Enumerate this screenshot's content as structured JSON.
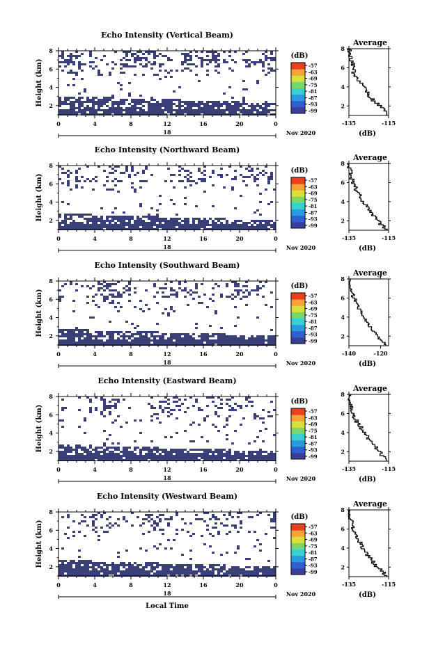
{
  "shared": {
    "y_label": "Height (km)",
    "x_ticks": [
      "0",
      "4",
      "8",
      "12",
      "16",
      "20",
      "0"
    ],
    "date_day": "18",
    "date_month_year": "Nov 2020",
    "x_bottom_label": "Local Time",
    "unit_label": "(dB)",
    "colorbar_ticks": [
      "-57",
      "-63",
      "-69",
      "-75",
      "-81",
      "-87",
      "-93",
      "-99"
    ],
    "avg_title": "Average",
    "avg_unit": "(dB)",
    "y_ticks": [
      "2",
      "4",
      "6",
      "8"
    ],
    "avg_y_ticks": [
      "2",
      "4",
      "6",
      "8"
    ]
  },
  "chart_data": [
    {
      "type": "heatmap",
      "title": "Echo Intensity (Vertical Beam)",
      "xlabel": "",
      "ylabel": "Height (km)",
      "xlim": [
        0,
        24
      ],
      "ylim": [
        1,
        8
      ],
      "colorbar": {
        "label": "(dB)",
        "range": [
          -99,
          -57
        ]
      },
      "average_profile": {
        "title": "Average",
        "xlabel": "(dB)",
        "xticks": [
          "-135",
          "-115"
        ],
        "xlim": [
          -135,
          -115
        ],
        "height_km": [
          1,
          2,
          3,
          4,
          5,
          6,
          7,
          8
        ],
        "db": [
          -115,
          -120,
          -125,
          -128,
          -132,
          -133,
          -134,
          -135
        ]
      }
    },
    {
      "type": "heatmap",
      "title": "Echo Intensity (Northward Beam)",
      "xlabel": "",
      "ylabel": "Height (km)",
      "xlim": [
        0,
        24
      ],
      "ylim": [
        1,
        8
      ],
      "colorbar": {
        "label": "(dB)",
        "range": [
          -99,
          -57
        ]
      },
      "average_profile": {
        "title": "Average",
        "xlabel": "(dB)",
        "xticks": [
          "-135",
          "-115"
        ],
        "xlim": [
          -135,
          -115
        ],
        "height_km": [
          1,
          2,
          3,
          4,
          5,
          6,
          7,
          8
        ],
        "db": [
          -116,
          -121,
          -124,
          -128,
          -131,
          -133,
          -134,
          -135
        ]
      }
    },
    {
      "type": "heatmap",
      "title": "Echo Intensity (Southward Beam)",
      "xlabel": "",
      "ylabel": "Height (km)",
      "xlim": [
        0,
        24
      ],
      "ylim": [
        1,
        8
      ],
      "colorbar": {
        "label": "(dB)",
        "range": [
          -99,
          -57
        ]
      },
      "average_profile": {
        "title": "Average",
        "xlabel": "(dB)",
        "xticks": [
          "-140",
          "-120"
        ],
        "xlim": [
          -140,
          -115
        ],
        "height_km": [
          1,
          2,
          3,
          4,
          5,
          6,
          7,
          8
        ],
        "db": [
          -117,
          -122,
          -127,
          -131,
          -134,
          -137,
          -139,
          -140
        ]
      }
    },
    {
      "type": "heatmap",
      "title": "Echo Intensity (Eastward Beam)",
      "xlabel": "",
      "ylabel": "Height (km)",
      "xlim": [
        0,
        24
      ],
      "ylim": [
        1,
        8
      ],
      "colorbar": {
        "label": "(dB)",
        "range": [
          -99,
          -57
        ]
      },
      "average_profile": {
        "title": "Average",
        "xlabel": "(dB)",
        "xticks": [
          "-135",
          "-115"
        ],
        "xlim": [
          -135,
          -115
        ],
        "height_km": [
          1,
          2,
          3,
          4,
          5,
          6,
          7,
          8
        ],
        "db": [
          -116,
          -120,
          -124,
          -127,
          -131,
          -133,
          -134,
          -135
        ]
      }
    },
    {
      "type": "heatmap",
      "title": "Echo Intensity (Westward Beam)",
      "xlabel": "Local Time",
      "ylabel": "Height (km)",
      "xlim": [
        0,
        24
      ],
      "ylim": [
        1,
        8
      ],
      "colorbar": {
        "label": "(dB)",
        "range": [
          -99,
          -57
        ]
      },
      "average_profile": {
        "title": "Average",
        "xlabel": "(dB)",
        "xticks": [
          "-135",
          "-115"
        ],
        "xlim": [
          -135,
          -115
        ],
        "height_km": [
          1,
          2,
          3,
          4,
          5,
          6,
          7,
          8
        ],
        "db": [
          -116,
          -121,
          -125,
          -128,
          -131,
          -133,
          -134,
          -135
        ]
      }
    }
  ],
  "colors": {
    "echo_fill": "#3a3f78",
    "background": "#ffffff",
    "colorbar": [
      "#3a3f9a",
      "#2f5fd0",
      "#2a9bdf",
      "#38d0d0",
      "#7ad86a",
      "#d8e03c",
      "#f8a238",
      "#e84020"
    ]
  }
}
